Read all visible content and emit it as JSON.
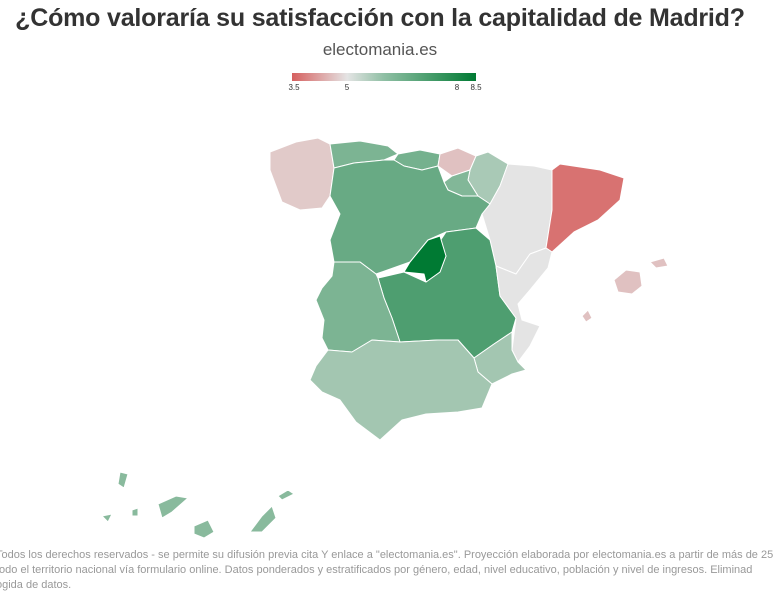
{
  "title": "¿Cómo valoraría su satisfacción con la capitalidad de Madrid?",
  "subtitle": "electomania.es",
  "legend": {
    "ticks": [
      "3.5",
      "5",
      "8",
      "8.5"
    ],
    "colors": {
      "low": "#d6605f",
      "mid": "#e4e4e4",
      "high": "#007a33"
    }
  },
  "map_data": {
    "type": "choropleth",
    "scale": {
      "min": 3.5,
      "mid": 5,
      "max": 8.5
    },
    "regions": [
      {
        "name": "Galicia",
        "value": 4.7
      },
      {
        "name": "Asturias",
        "value": 6.6
      },
      {
        "name": "Cantabria",
        "value": 6.7
      },
      {
        "name": "País Vasco",
        "value": 4.6
      },
      {
        "name": "Navarra",
        "value": 5.9
      },
      {
        "name": "La Rioja",
        "value": 6.5
      },
      {
        "name": "Aragón",
        "value": 5.0
      },
      {
        "name": "Cataluña",
        "value": 3.7
      },
      {
        "name": "Castilla y León",
        "value": 6.9
      },
      {
        "name": "Madrid",
        "value": 8.5
      },
      {
        "name": "Castilla-La Mancha",
        "value": 7.3
      },
      {
        "name": "Extremadura",
        "value": 6.6
      },
      {
        "name": "Comunidad Valenciana",
        "value": 5.0
      },
      {
        "name": "Región de Murcia",
        "value": 6.0
      },
      {
        "name": "Andalucía",
        "value": 6.0
      },
      {
        "name": "Islas Baleares",
        "value": 4.6
      },
      {
        "name": "Canarias",
        "value": 6.4
      }
    ]
  },
  "footer": [
    "Todos los derechos reservados - se permite su difusión previa cita Y enlace a \"electomania.es\". Proyección elaborada por electomania.es a partir de más de 25",
    "todo el territorio nacional vía formulario online. Datos ponderados y estratificados por género, edad, nivel educativo, población y nivel de ingresos. Eliminad",
    "ogida de datos."
  ]
}
